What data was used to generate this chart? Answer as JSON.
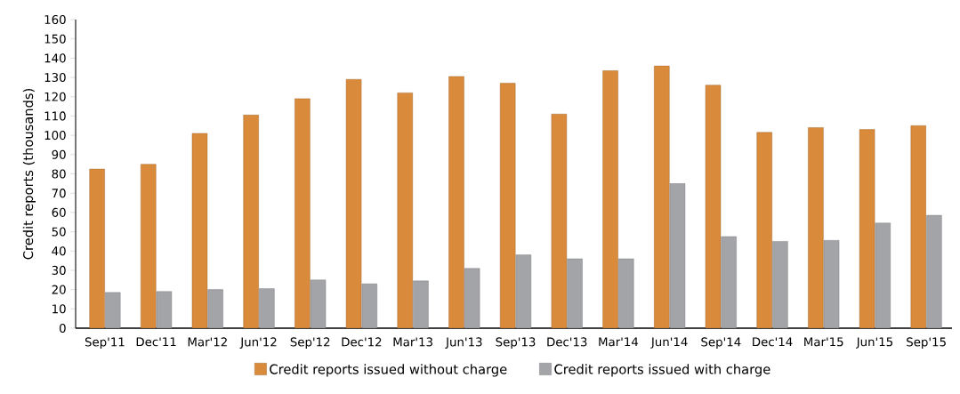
{
  "chart_data": {
    "type": "bar",
    "ylabel": "Credit reports (thousands)",
    "categories": [
      "Sep'11",
      "Dec'11",
      "Mar'12",
      "Jun'12",
      "Sep'12",
      "Dec'12",
      "Mar'13",
      "Jun'13",
      "Sep'13",
      "Dec'13",
      "Mar'14",
      "Jun'14",
      "Sep'14",
      "Dec'14",
      "Mar'15",
      "Jun'15",
      "Sep'15"
    ],
    "series": [
      {
        "name": "Credit reports issued without charge",
        "color": "#d98a3a",
        "values": [
          82.5,
          85,
          101,
          110.5,
          119,
          129,
          122,
          130.5,
          127,
          111,
          133.5,
          136,
          126,
          101.5,
          104,
          103,
          105
        ]
      },
      {
        "name": "Credit reports issued with charge",
        "color": "#a3a4a8",
        "values": [
          18.5,
          19,
          20,
          20.5,
          25,
          23,
          24.5,
          31,
          38,
          36,
          36,
          75,
          47.5,
          45,
          45.5,
          54.5,
          58.5
        ]
      }
    ],
    "ylim": [
      0,
      160
    ],
    "yticks": [
      0,
      10,
      20,
      30,
      40,
      50,
      60,
      70,
      80,
      90,
      100,
      110,
      120,
      130,
      140,
      150,
      160
    ],
    "legend": "bottom"
  }
}
